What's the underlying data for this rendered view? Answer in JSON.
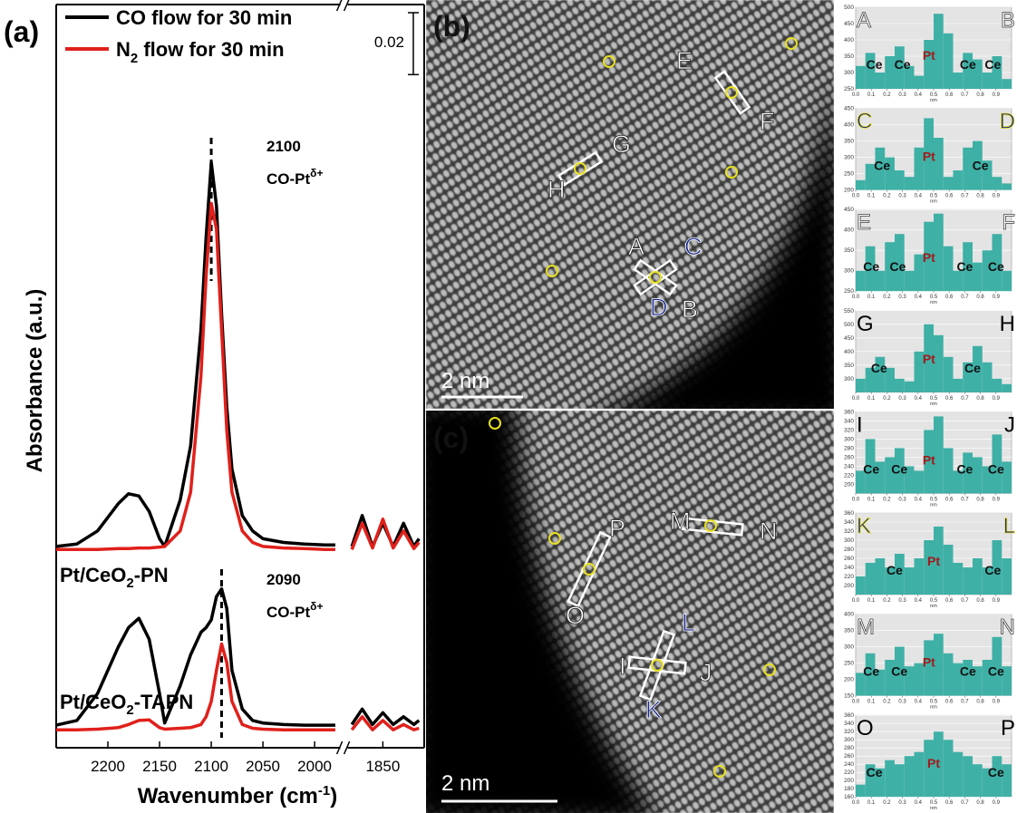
{
  "chart_data": {
    "type": "line",
    "panel_label": "(a)",
    "x_label": [
      "Wavenumber (cm",
      "-1",
      ")"
    ],
    "y_label": "Absorbance (a.u.)",
    "xlim": [
      2250,
      1810
    ],
    "x_break": [
      1975,
      1884
    ],
    "xticks": [
      2200,
      2150,
      2100,
      2050,
      2000,
      1850
    ],
    "ylim": [
      0.01,
      0.25
    ],
    "scale_bar": 0.02,
    "legend": [
      {
        "name": [
          "CO flow for 30 min"
        ],
        "color": "#000000"
      },
      {
        "name": [
          "N",
          "2",
          " flow for 30 min"
        ],
        "color": "#e0201b"
      }
    ],
    "x": [
      2250,
      2230,
      2210,
      2190,
      2180,
      2170,
      2160,
      2150,
      2145,
      2130,
      2120,
      2110,
      2105,
      2100,
      2095,
      2090,
      2085,
      2080,
      2070,
      2060,
      2050,
      2030,
      2010,
      1990,
      1980,
      1880,
      1870,
      1860,
      1850,
      1840,
      1830,
      1820,
      1815
    ],
    "samples": [
      {
        "label": [
          "Pt/CeO",
          "2",
          "-PN"
        ],
        "series": [
          {
            "color": "#000000",
            "values": [
              0.075,
              0.0758,
              0.08,
              0.0888,
              0.092,
              0.0913,
              0.0863,
              0.0775,
              0.075,
              0.09,
              0.1075,
              0.145,
              0.175,
              0.199,
              0.185,
              0.15,
              0.12,
              0.1,
              0.085,
              0.08,
              0.0775,
              0.0763,
              0.0758,
              0.0755,
              0.0755,
              0.075,
              0.085,
              0.075,
              0.0825,
              0.075,
              0.0825,
              0.075,
              0.0775
            ]
          },
          {
            "color": "#e0201b",
            "values": [
              0.074,
              0.074,
              0.074,
              0.0743,
              0.0743,
              0.0745,
              0.0745,
              0.0748,
              0.075,
              0.08,
              0.0925,
              0.13,
              0.1625,
              0.1858,
              0.1775,
              0.145,
              0.1125,
              0.0925,
              0.08,
              0.0763,
              0.075,
              0.0745,
              0.0743,
              0.074,
              0.074,
              0.074,
              0.0825,
              0.0745,
              0.0838,
              0.0745,
              0.08,
              0.0743,
              0.0763
            ]
          }
        ]
      },
      {
        "label": [
          "Pt/CeO",
          "2",
          "-TAPN"
        ],
        "series": [
          {
            "color": "#000000",
            "values": [
              0.0173,
              0.0188,
              0.0275,
              0.0425,
              0.0488,
              0.0518,
              0.045,
              0.0275,
              0.018,
              0.03,
              0.04,
              0.0473,
              0.0488,
              0.0513,
              0.0588,
              0.0613,
              0.055,
              0.035,
              0.0225,
              0.0188,
              0.018,
              0.0175,
              0.0173,
              0.0173,
              0.0173,
              0.0175,
              0.0225,
              0.0175,
              0.0213,
              0.0175,
              0.02,
              0.0175,
              0.0188
            ]
          },
          {
            "color": "#e0201b",
            "values": [
              0.0158,
              0.0158,
              0.016,
              0.0165,
              0.0175,
              0.0188,
              0.019,
              0.0165,
              0.016,
              0.0163,
              0.0165,
              0.0175,
              0.02,
              0.025,
              0.035,
              0.0435,
              0.0375,
              0.025,
              0.0175,
              0.0163,
              0.016,
              0.0158,
              0.0158,
              0.0158,
              0.0158,
              0.0158,
              0.02,
              0.0158,
              0.0188,
              0.0158,
              0.0175,
              0.0158,
              0.0163
            ]
          }
        ]
      }
    ],
    "annotations": [
      {
        "value": 2100,
        "label": [
          "CO-Pt",
          "δ+"
        ]
      },
      {
        "value": 2090,
        "label": [
          "CO-Pt",
          "δ+"
        ]
      }
    ]
  },
  "panel_b": {
    "label": "(b)",
    "scale_bar": "2 nm",
    "markers": [
      "A",
      "B",
      "C",
      "D",
      "E",
      "F",
      "G",
      "H"
    ]
  },
  "panel_c": {
    "label": "(c)",
    "scale_bar": "2 nm",
    "markers": [
      "I",
      "J",
      "K",
      "L",
      "M",
      "N",
      "O",
      "P"
    ]
  },
  "profiles": {
    "color": "#3fb0a6",
    "x_label": "nm",
    "xlim": [
      0,
      1
    ],
    "bins": [
      0,
      0.0625,
      0.125,
      0.1875,
      0.25,
      0.3125,
      0.375,
      0.4375,
      0.5,
      0.5625,
      0.625,
      0.6875,
      0.75,
      0.8125,
      0.875,
      0.9375,
      1
    ],
    "xticks": [
      {
        "value": 0,
        "label": "0.0"
      },
      0.1,
      0.2,
      0.3,
      0.4,
      0.5,
      0.6,
      0.7,
      0.8,
      0.9
    ],
    "items": [
      {
        "left": "A",
        "right": "B",
        "labels": [
          "Ce",
          "Ce",
          "Pt",
          "Ce",
          "Ce"
        ],
        "ylim": [
          250,
          500
        ],
        "yticks": [
          250,
          300,
          350,
          400,
          450,
          500
        ],
        "values": [
          320,
          360,
          300,
          350,
          380,
          320,
          290,
          400,
          480,
          420,
          300,
          360,
          340,
          300,
          350,
          280
        ]
      },
      {
        "left": "C",
        "right": "D",
        "labels": [
          "Ce",
          "Pt",
          "Ce"
        ],
        "ylim": [
          200,
          450
        ],
        "yticks": [
          200,
          250,
          300,
          350,
          400,
          450
        ],
        "values": [
          230,
          280,
          330,
          300,
          260,
          240,
          330,
          420,
          360,
          240,
          260,
          330,
          350,
          290,
          240,
          220
        ]
      },
      {
        "left": "E",
        "right": "F",
        "labels": [
          "Ce",
          "Ce",
          "Pt",
          "Ce",
          "Ce"
        ],
        "ylim": [
          250,
          450
        ],
        "yticks": [
          250,
          300,
          350,
          400,
          450
        ],
        "values": [
          300,
          360,
          300,
          370,
          390,
          300,
          340,
          420,
          440,
          360,
          300,
          370,
          320,
          350,
          390,
          300
        ]
      },
      {
        "left": "G",
        "right": "H",
        "labels": [
          "Ce",
          "Pt",
          "Ce"
        ],
        "ylim": [
          250,
          550
        ],
        "yticks": [
          300,
          350,
          400,
          450,
          500,
          550
        ],
        "values": [
          300,
          340,
          380,
          340,
          300,
          290,
          400,
          500,
          460,
          380,
          300,
          360,
          420,
          360,
          300,
          280
        ]
      },
      {
        "left": "I",
        "right": "J",
        "labels": [
          "Ce",
          "Ce",
          "Pt",
          "Ce",
          "Ce"
        ],
        "ylim": [
          180,
          360
        ],
        "yticks": [
          200,
          220,
          240,
          260,
          280,
          300,
          320,
          340,
          360
        ],
        "values": [
          230,
          300,
          250,
          260,
          280,
          240,
          230,
          320,
          350,
          280,
          230,
          270,
          260,
          240,
          310,
          250
        ]
      },
      {
        "left": "K",
        "right": "L",
        "labels": [
          "Ce",
          "Pt",
          "Ce"
        ],
        "ylim": [
          180,
          360
        ],
        "yticks": [
          200,
          220,
          240,
          260,
          280,
          300,
          320,
          340,
          360
        ],
        "values": [
          220,
          250,
          260,
          240,
          270,
          240,
          260,
          300,
          330,
          290,
          250,
          240,
          260,
          240,
          300,
          260
        ]
      },
      {
        "left": "M",
        "right": "N",
        "labels": [
          "Ce",
          "Ce",
          "Pt",
          "Ce",
          "Ce"
        ],
        "ylim": [
          150,
          400
        ],
        "yticks": [
          150,
          200,
          250,
          300,
          350,
          400
        ],
        "values": [
          220,
          280,
          230,
          260,
          300,
          240,
          250,
          320,
          340,
          280,
          250,
          260,
          240,
          260,
          330,
          240
        ]
      },
      {
        "left": "O",
        "right": "P",
        "labels": [
          "Ce",
          "Pt",
          "Ce"
        ],
        "ylim": [
          160,
          360
        ],
        "yticks": [
          160,
          180,
          200,
          220,
          240,
          260,
          280,
          300,
          320,
          340,
          360
        ],
        "values": [
          190,
          240,
          230,
          250,
          240,
          260,
          270,
          300,
          320,
          300,
          270,
          260,
          240,
          230,
          260,
          240
        ]
      }
    ]
  }
}
